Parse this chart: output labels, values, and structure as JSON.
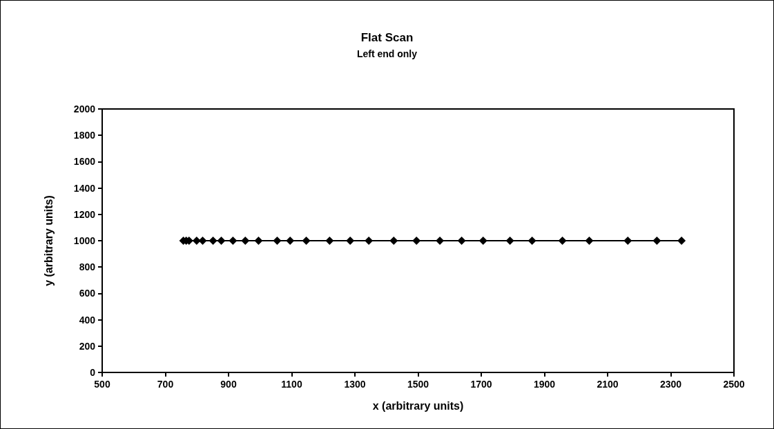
{
  "chart_data": {
    "type": "line",
    "title": "Flat Scan",
    "subtitle": "Left end only",
    "xlabel": "x (arbitrary units)",
    "ylabel": "y (arbitrary units)",
    "x": [
      757,
      766,
      775,
      799,
      818,
      851,
      877,
      914,
      953,
      995,
      1054,
      1095,
      1146,
      1220,
      1285,
      1344,
      1423,
      1495,
      1569,
      1638,
      1706,
      1791,
      1861,
      1957,
      2042,
      2164,
      2256,
      2334
    ],
    "series": [
      {
        "color": "#000000",
        "values": [
          1000,
          1000,
          1000,
          1000,
          1000,
          1000,
          1000,
          1000,
          1000,
          1000,
          1000,
          1000,
          1000,
          1000,
          1000,
          1000,
          1000,
          1000,
          1000,
          1000,
          1000,
          1000,
          1000,
          1000,
          1000,
          1000,
          1000,
          1000
        ]
      }
    ],
    "xlim": [
      500,
      2500
    ],
    "xticks": [
      500,
      700,
      900,
      1100,
      1300,
      1500,
      1700,
      1900,
      2100,
      2300,
      2500
    ],
    "ylim": [
      0,
      2000
    ],
    "yticks": [
      0,
      200,
      400,
      600,
      800,
      1000,
      1200,
      1400,
      1600,
      1800,
      2000
    ],
    "grid": false,
    "marker": "diamond",
    "line_style": "solid"
  }
}
